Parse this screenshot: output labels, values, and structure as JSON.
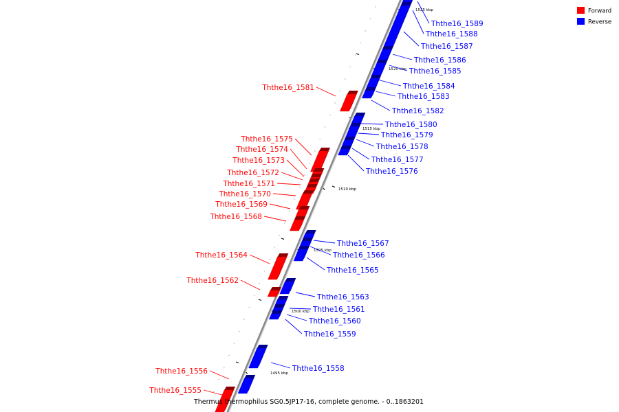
{
  "caption": "Thermus thermophilus SG0.5JP17-16, complete genome. - 0..1863201",
  "legend": [
    {
      "label": "Forward",
      "color": "#ff0000"
    },
    {
      "label": "Reverse",
      "color": "#0000ff"
    }
  ],
  "colors": {
    "forward": "#ff0000",
    "reverse": "#0000ff",
    "axis": "#888888"
  },
  "ticks": [
    "1525 kbp",
    "1520 kbp",
    "1515 kbp",
    "1510 kbp",
    "1505 kbp",
    "1500 kbp",
    "1495 kbp"
  ],
  "genes_forward": [
    "Ththe16_1581",
    "Ththe16_1575",
    "Ththe16_1574",
    "Ththe16_1573",
    "Ththe16_1572",
    "Ththe16_1571",
    "Ththe16_1570",
    "Ththe16_1569",
    "Ththe16_1568",
    "Ththe16_1564",
    "Ththe16_1562",
    "Ththe16_1556",
    "Ththe16_1555"
  ],
  "genes_reverse": [
    "Ththe16_1589",
    "Ththe16_1588",
    "Ththe16_1587",
    "Ththe16_1586",
    "Ththe16_1585",
    "Ththe16_1584",
    "Ththe16_1583",
    "Ththe16_1582",
    "Ththe16_1580",
    "Ththe16_1579",
    "Ththe16_1578",
    "Ththe16_1577",
    "Ththe16_1576",
    "Ththe16_1567",
    "Ththe16_1566",
    "Ththe16_1565",
    "Ththe16_1563",
    "Ththe16_1561",
    "Ththe16_1560",
    "Ththe16_1559",
    "Ththe16_1558"
  ]
}
